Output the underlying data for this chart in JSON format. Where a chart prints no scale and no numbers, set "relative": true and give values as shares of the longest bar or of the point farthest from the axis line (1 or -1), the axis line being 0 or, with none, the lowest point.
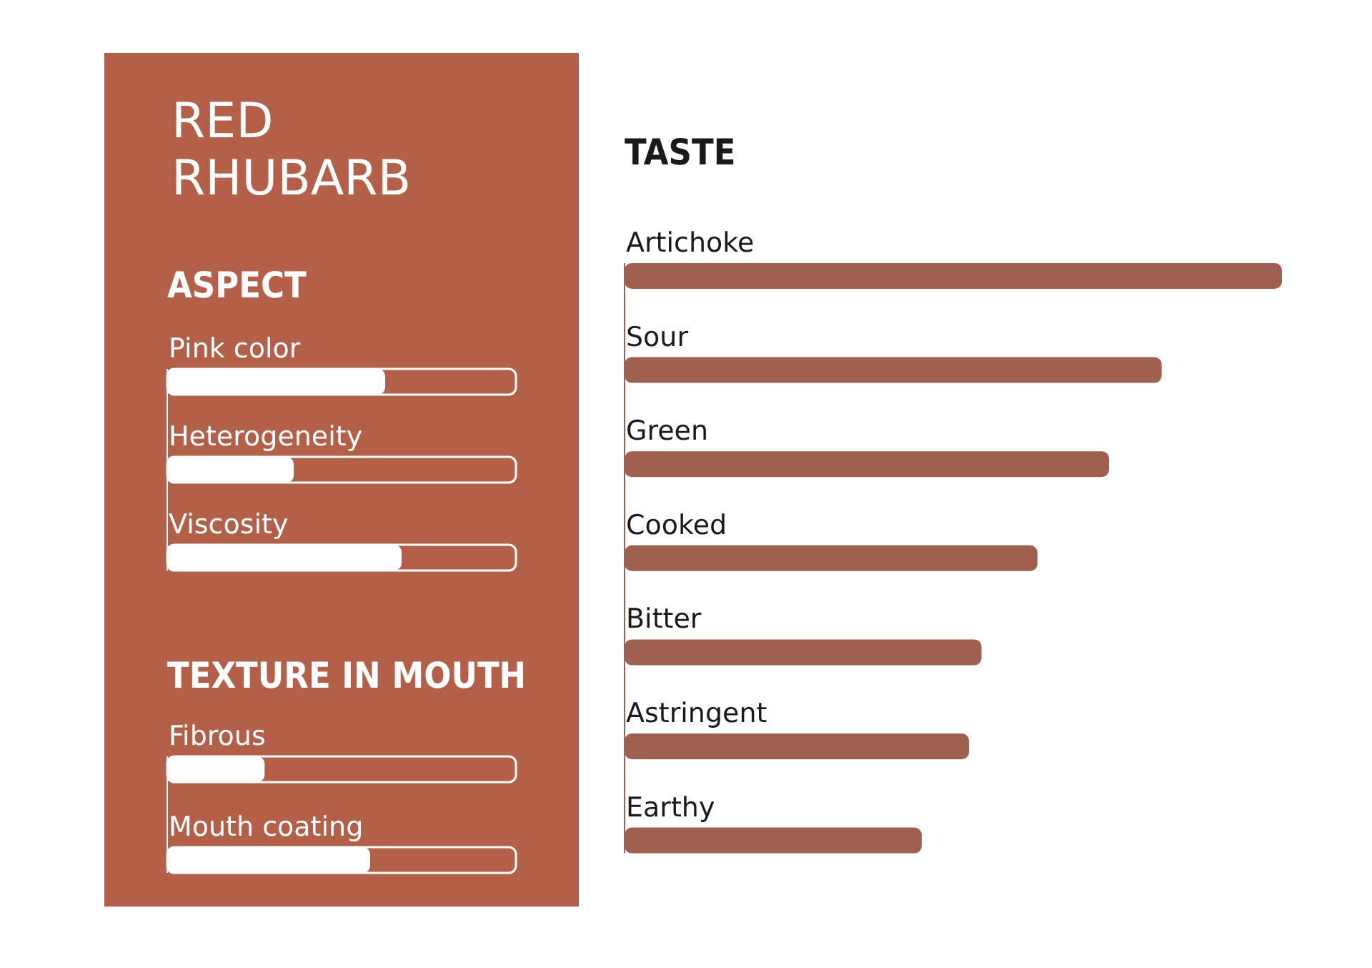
{
  "chart_data": [
    {
      "type": "other",
      "title": "RED RHUBARB"
    },
    {
      "type": "bar",
      "orientation": "horizontal",
      "relative": true,
      "title": "ASPECT",
      "categories": [
        "Pink color",
        "Heterogeneity",
        "Viscosity"
      ],
      "values": [
        0.93,
        0.54,
        1
      ],
      "color": "#ffffff"
    },
    {
      "type": "bar",
      "orientation": "horizontal",
      "relative": true,
      "title": "TEXTURE IN MOUTH",
      "categories": [
        "Fibrous",
        "Mouth coating"
      ],
      "values": [
        0.48,
        1
      ],
      "color": "#ffffff"
    },
    {
      "type": "bar",
      "orientation": "horizontal",
      "relative": true,
      "title": "TASTE",
      "categories": [
        "Artichoke",
        "Sour",
        "Green",
        "Cooked",
        "Bitter",
        "Astringent",
        "Earthy"
      ],
      "values": [
        1,
        0.817,
        0.737,
        0.628,
        0.543,
        0.524,
        0.452
      ],
      "color": "#a0604f"
    }
  ]
}
